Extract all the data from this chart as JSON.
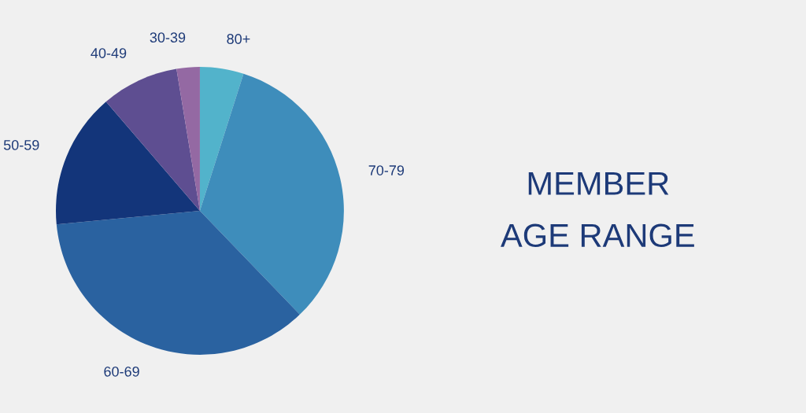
{
  "chart_data": {
    "type": "pie",
    "title": "MEMBER AGE RANGE",
    "categories": [
      "80+",
      "70-79",
      "60-69",
      "50-59",
      "40-49",
      "30-39"
    ],
    "values": [
      4.9,
      32.9,
      35.7,
      15.2,
      8.7,
      2.6
    ],
    "colors": [
      "#52b3cb",
      "#3e8dbb",
      "#2a62a0",
      "#13357a",
      "#5e4e91",
      "#9469a3"
    ]
  }
}
